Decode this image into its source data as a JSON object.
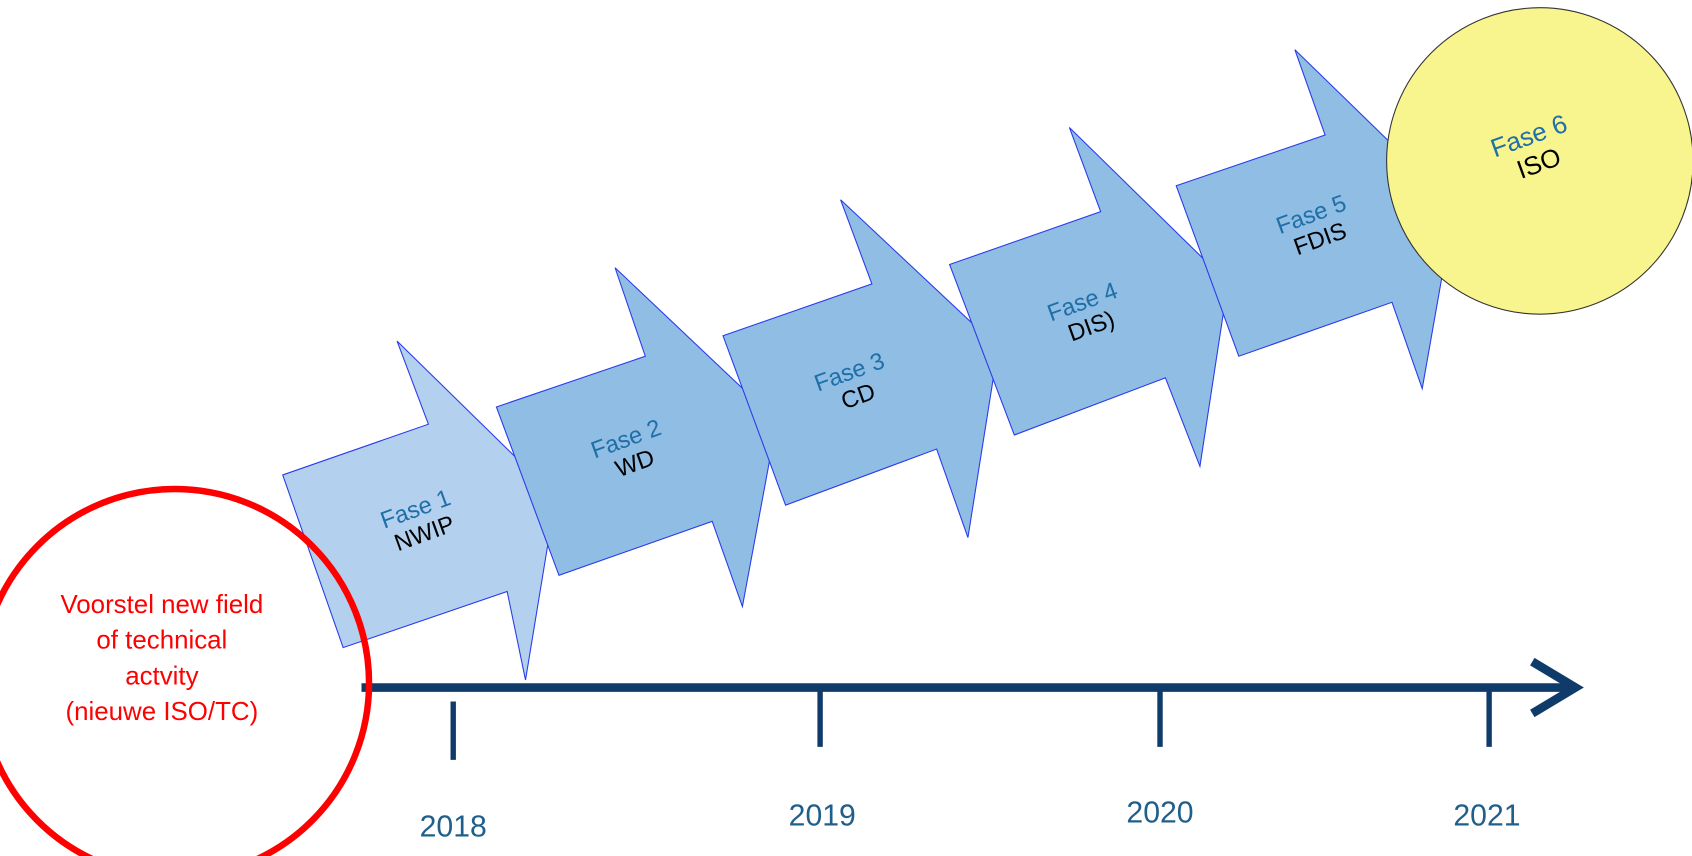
{
  "phases": [
    {
      "name": "Fase 1",
      "code": "NWIP"
    },
    {
      "name": "Fase 2",
      "code": "WD"
    },
    {
      "name": "Fase 3",
      "code": "CD"
    },
    {
      "name": "Fase 4",
      "code": "DIS)"
    },
    {
      "name": "Fase 5",
      "code": "FDIS"
    },
    {
      "name": "Fase 6",
      "code": "ISO"
    }
  ],
  "proposal": {
    "lines": [
      "Voorstel new field",
      "of technical",
      "actvity",
      "(nieuwe ISO/TC)"
    ]
  },
  "timeline": {
    "years": [
      "2018",
      "2019",
      "2020",
      "2021"
    ]
  }
}
